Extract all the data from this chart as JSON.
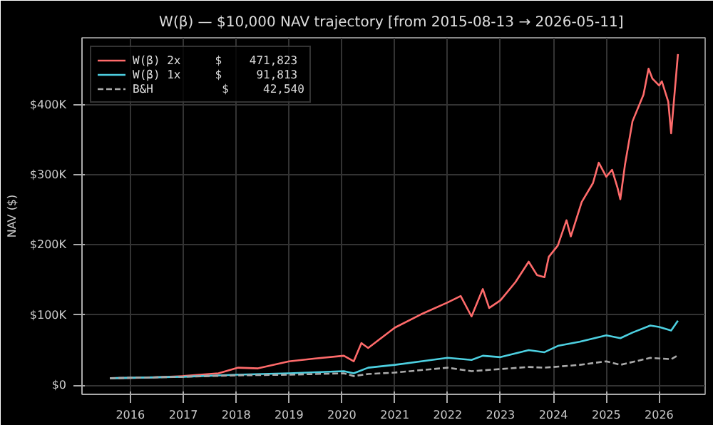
{
  "chart_data": {
    "type": "line",
    "title": "W(β) — $10,000 NAV trajectory  [from 2015-08-13 → 2026-05-11]",
    "ylabel": "NAV ($)",
    "xlim": [
      "2015-02-01",
      "2026-11-15"
    ],
    "xticks": [
      "2016",
      "2017",
      "2018",
      "2019",
      "2020",
      "2021",
      "2022",
      "2023",
      "2024",
      "2025",
      "2026"
    ],
    "ylim": [
      -13000,
      495000
    ],
    "yticks": [
      {
        "value": 0,
        "label": "$0"
      },
      {
        "value": 100000,
        "label": "$100K"
      },
      {
        "value": 200000,
        "label": "$200K"
      },
      {
        "value": 300000,
        "label": "$300K"
      },
      {
        "value": 400000,
        "label": "$400K"
      }
    ],
    "grid": true,
    "legend": "top left",
    "marker": "none",
    "series": [
      {
        "name": "W(β) 2x     $    471,823",
        "color": "#ff6b6b",
        "line_style": "solid",
        "x": [
          "2015-08-13",
          "2016-06-01",
          "2017-01-01",
          "2017-09-01",
          "2018-01-15",
          "2018-06-01",
          "2019-01-01",
          "2019-07-01",
          "2020-01-15",
          "2020-03-23",
          "2020-05-15",
          "2020-07-01",
          "2021-01-01",
          "2021-07-01",
          "2022-01-01",
          "2022-04-01",
          "2022-06-15",
          "2022-09-01",
          "2022-10-15",
          "2023-01-01",
          "2023-04-15",
          "2023-07-15",
          "2023-09-10",
          "2023-11-01",
          "2023-12-01",
          "2024-02-01",
          "2024-04-01",
          "2024-05-01",
          "2024-07-15",
          "2024-10-01",
          "2024-11-10",
          "2025-01-01",
          "2025-02-10",
          "2025-03-20",
          "2025-04-08",
          "2025-05-10",
          "2025-07-01",
          "2025-09-15",
          "2025-10-20",
          "2025-11-15",
          "2026-01-01",
          "2026-01-20",
          "2026-03-05",
          "2026-03-25",
          "2026-05-11"
        ],
        "values": [
          10000,
          11000,
          13000,
          17000,
          25000,
          24000,
          34000,
          38000,
          42000,
          34000,
          60000,
          53000,
          82000,
          101000,
          118000,
          127000,
          98000,
          137000,
          110000,
          121000,
          147000,
          176000,
          157000,
          154000,
          183000,
          199000,
          235000,
          212000,
          261000,
          288000,
          317000,
          297000,
          307000,
          281000,
          265000,
          314000,
          376000,
          414000,
          451000,
          437000,
          427000,
          433000,
          404000,
          359000,
          471823
        ]
      },
      {
        "name": "W(β) 1x     $     91,813",
        "color": "#4dd0e1",
        "line_style": "solid",
        "x": [
          "2015-08-13",
          "2017-01-01",
          "2018-01-01",
          "2019-01-01",
          "2020-01-15",
          "2020-03-23",
          "2020-07-01",
          "2021-01-01",
          "2022-01-01",
          "2022-06-15",
          "2022-09-01",
          "2023-01-01",
          "2023-07-15",
          "2023-11-01",
          "2024-02-01",
          "2024-07-01",
          "2025-01-01",
          "2025-04-08",
          "2025-07-01",
          "2025-11-01",
          "2026-01-01",
          "2026-03-25",
          "2026-05-11"
        ],
        "values": [
          10000,
          12000,
          15000,
          17000,
          20000,
          17000,
          25000,
          29000,
          39000,
          36000,
          42000,
          40000,
          50000,
          47000,
          56000,
          62000,
          71000,
          67000,
          75000,
          85000,
          83000,
          78000,
          91813
        ]
      },
      {
        "name": "B&H          $     42,540",
        "color": "#aaaaaa",
        "line_style": "dashed",
        "x": [
          "2015-08-13",
          "2017-01-01",
          "2018-01-01",
          "2019-01-01",
          "2020-01-15",
          "2020-03-23",
          "2020-07-01",
          "2021-01-01",
          "2022-01-01",
          "2022-06-15",
          "2023-01-01",
          "2023-07-15",
          "2023-11-01",
          "2024-07-01",
          "2025-01-01",
          "2025-04-08",
          "2025-11-01",
          "2026-03-25",
          "2026-05-11"
        ],
        "values": [
          10000,
          12000,
          14000,
          15000,
          17000,
          13000,
          16000,
          18000,
          25000,
          20000,
          23000,
          26000,
          25000,
          29000,
          34000,
          29000,
          39000,
          37000,
          42540
        ]
      }
    ]
  }
}
